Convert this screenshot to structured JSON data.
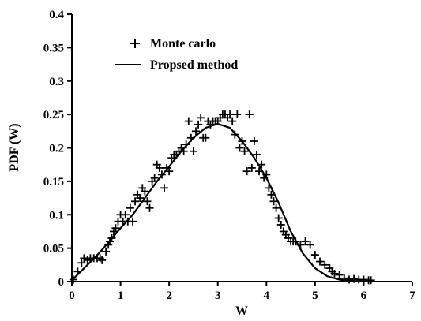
{
  "chart_data": {
    "type": "scatter",
    "title": "",
    "xlabel": "W",
    "ylabel": "PDF (W)",
    "xlim": [
      0,
      7
    ],
    "ylim": [
      0,
      0.4
    ],
    "x_ticks": [
      "0",
      "1",
      "2",
      "3",
      "4",
      "5",
      "6",
      "7"
    ],
    "y_ticks": [
      "0",
      "0.05",
      "0.1",
      "0.15",
      "0.2",
      "0.25",
      "0.3",
      "0.35",
      "0.4"
    ],
    "grid": false,
    "legend_position": "top-left",
    "series": [
      {
        "name": "Monte carlo",
        "mark": "plus",
        "points": [
          [
            0.03,
            0.003
          ],
          [
            0.12,
            0.015
          ],
          [
            0.2,
            0.028
          ],
          [
            0.25,
            0.035
          ],
          [
            0.32,
            0.032
          ],
          [
            0.38,
            0.035
          ],
          [
            0.45,
            0.035
          ],
          [
            0.52,
            0.035
          ],
          [
            0.58,
            0.035
          ],
          [
            0.62,
            0.032
          ],
          [
            0.7,
            0.045
          ],
          [
            0.75,
            0.055
          ],
          [
            0.78,
            0.06
          ],
          [
            0.82,
            0.065
          ],
          [
            0.86,
            0.075
          ],
          [
            0.9,
            0.08
          ],
          [
            0.95,
            0.09
          ],
          [
            1.0,
            0.1
          ],
          [
            1.05,
            0.09
          ],
          [
            1.1,
            0.1
          ],
          [
            1.15,
            0.09
          ],
          [
            1.2,
            0.11
          ],
          [
            1.25,
            0.09
          ],
          [
            1.3,
            0.12
          ],
          [
            1.35,
            0.13
          ],
          [
            1.4,
            0.125
          ],
          [
            1.45,
            0.14
          ],
          [
            1.5,
            0.135
          ],
          [
            1.55,
            0.12
          ],
          [
            1.6,
            0.11
          ],
          [
            1.65,
            0.15
          ],
          [
            1.7,
            0.155
          ],
          [
            1.75,
            0.175
          ],
          [
            1.8,
            0.17
          ],
          [
            1.85,
            0.16
          ],
          [
            1.9,
            0.14
          ],
          [
            1.95,
            0.17
          ],
          [
            2.0,
            0.165
          ],
          [
            2.05,
            0.185
          ],
          [
            2.1,
            0.19
          ],
          [
            2.15,
            0.19
          ],
          [
            2.2,
            0.195
          ],
          [
            2.25,
            0.2
          ],
          [
            2.3,
            0.195
          ],
          [
            2.35,
            0.205
          ],
          [
            2.4,
            0.24
          ],
          [
            2.45,
            0.215
          ],
          [
            2.5,
            0.195
          ],
          [
            2.55,
            0.225
          ],
          [
            2.6,
            0.235
          ],
          [
            2.65,
            0.245
          ],
          [
            2.7,
            0.215
          ],
          [
            2.75,
            0.215
          ],
          [
            2.8,
            0.24
          ],
          [
            2.85,
            0.235
          ],
          [
            2.9,
            0.24
          ],
          [
            2.95,
            0.24
          ],
          [
            3.0,
            0.24
          ],
          [
            3.05,
            0.245
          ],
          [
            3.1,
            0.25
          ],
          [
            3.15,
            0.25
          ],
          [
            3.2,
            0.245
          ],
          [
            3.25,
            0.25
          ],
          [
            3.3,
            0.24
          ],
          [
            3.35,
            0.22
          ],
          [
            3.4,
            0.25
          ],
          [
            3.45,
            0.2
          ],
          [
            3.5,
            0.21
          ],
          [
            3.55,
            0.195
          ],
          [
            3.6,
            0.165
          ],
          [
            3.65,
            0.25
          ],
          [
            3.7,
            0.17
          ],
          [
            3.75,
            0.21
          ],
          [
            3.8,
            0.19
          ],
          [
            3.85,
            0.165
          ],
          [
            3.9,
            0.175
          ],
          [
            3.95,
            0.155
          ],
          [
            4.0,
            0.16
          ],
          [
            4.05,
            0.14
          ],
          [
            4.1,
            0.13
          ],
          [
            4.15,
            0.12
          ],
          [
            4.2,
            0.11
          ],
          [
            4.25,
            0.095
          ],
          [
            4.3,
            0.085
          ],
          [
            4.35,
            0.075
          ],
          [
            4.4,
            0.07
          ],
          [
            4.45,
            0.065
          ],
          [
            4.5,
            0.06
          ],
          [
            4.55,
            0.06
          ],
          [
            4.6,
            0.06
          ],
          [
            4.7,
            0.055
          ],
          [
            4.8,
            0.06
          ],
          [
            4.9,
            0.055
          ],
          [
            5.0,
            0.04
          ],
          [
            5.1,
            0.03
          ],
          [
            5.2,
            0.025
          ],
          [
            5.3,
            0.02
          ],
          [
            5.35,
            0.015
          ],
          [
            5.4,
            0.012
          ],
          [
            5.5,
            0.01
          ],
          [
            5.6,
            0.005
          ],
          [
            5.7,
            0.003
          ],
          [
            5.8,
            0.004
          ],
          [
            5.9,
            0.003
          ],
          [
            6.0,
            0.003
          ],
          [
            6.1,
            0.002
          ],
          [
            6.15,
            0.002
          ]
        ]
      },
      {
        "name": "Propsed method",
        "mark": "line",
        "points": [
          [
            0.0,
            0.002
          ],
          [
            0.25,
            0.02
          ],
          [
            0.5,
            0.038
          ],
          [
            0.75,
            0.058
          ],
          [
            1.0,
            0.08
          ],
          [
            1.25,
            0.1
          ],
          [
            1.5,
            0.125
          ],
          [
            1.75,
            0.15
          ],
          [
            2.0,
            0.172
          ],
          [
            2.25,
            0.195
          ],
          [
            2.5,
            0.215
          ],
          [
            2.75,
            0.23
          ],
          [
            3.0,
            0.236
          ],
          [
            3.25,
            0.23
          ],
          [
            3.5,
            0.21
          ],
          [
            3.75,
            0.185
          ],
          [
            4.0,
            0.155
          ],
          [
            4.25,
            0.118
          ],
          [
            4.5,
            0.075
          ],
          [
            4.75,
            0.042
          ],
          [
            5.0,
            0.02
          ],
          [
            5.25,
            0.008
          ],
          [
            5.5,
            0.003
          ],
          [
            5.75,
            0.001
          ],
          [
            6.0,
            0.0003
          ],
          [
            6.2,
            0.0
          ]
        ]
      }
    ]
  }
}
